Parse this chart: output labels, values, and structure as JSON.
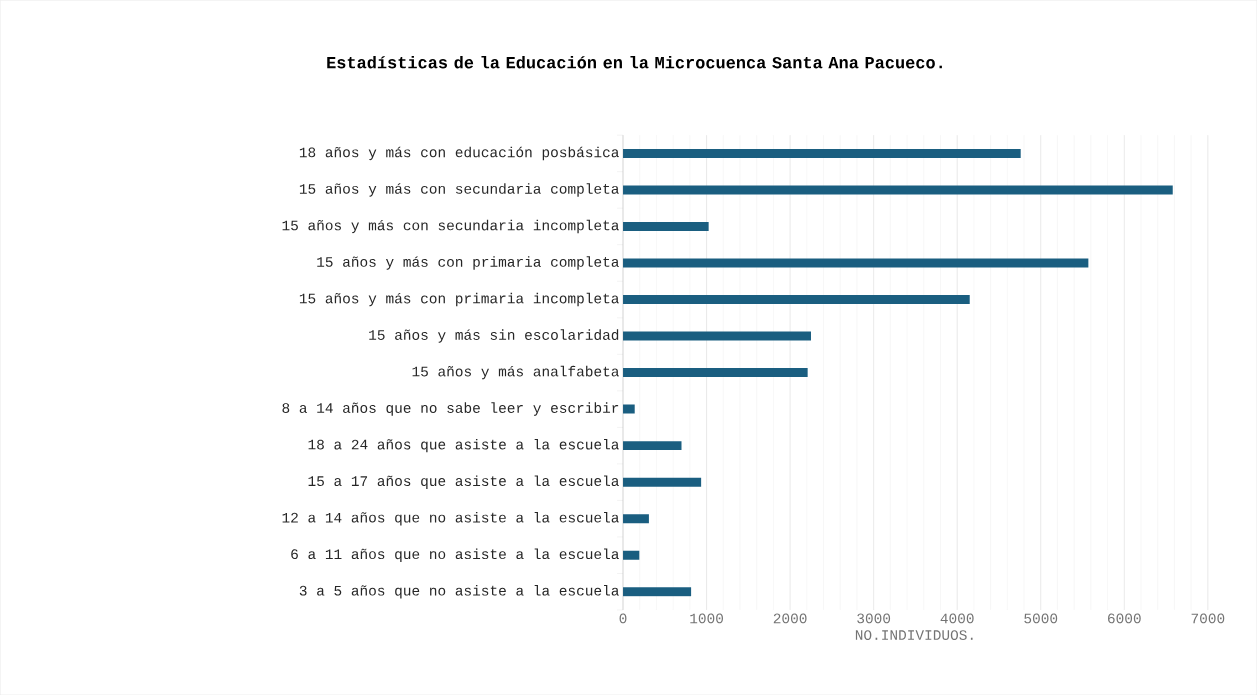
{
  "chart_data": {
    "type": "bar",
    "orientation": "horizontal",
    "title": "Estadísticas de la Educación en la Microcuenca Santa Ana Pacueco.",
    "xlabel": "NO.INDIVIDUOS.",
    "categories": [
      "18 años y más con educación posbásica",
      "15 años y más con secundaria completa",
      "15 años y más con secundaria incompleta",
      "15 años y más con primaria completa",
      "15 años y más con primaria incompleta",
      "15 años y más sin escolaridad",
      "15 años y más analfabeta",
      "8 a 14 años que no sabe leer y escribir",
      "18 a 24 años que asiste a la escuela",
      "15 a 17 años que asiste a la escuela",
      "12 a 14 años que no asiste a la escuela",
      "6 a 11 años que no asiste a la escuela",
      "3 a 5 años que no asiste a la escuela"
    ],
    "values": [
      4760,
      6580,
      1025,
      5570,
      4150,
      2250,
      2210,
      140,
      700,
      935,
      310,
      195,
      815
    ],
    "color": "#1a5e80",
    "xlim": [
      0,
      7000
    ],
    "xticks": [
      0,
      1000,
      2000,
      3000,
      4000,
      5000,
      6000,
      7000
    ],
    "grid": "x"
  }
}
